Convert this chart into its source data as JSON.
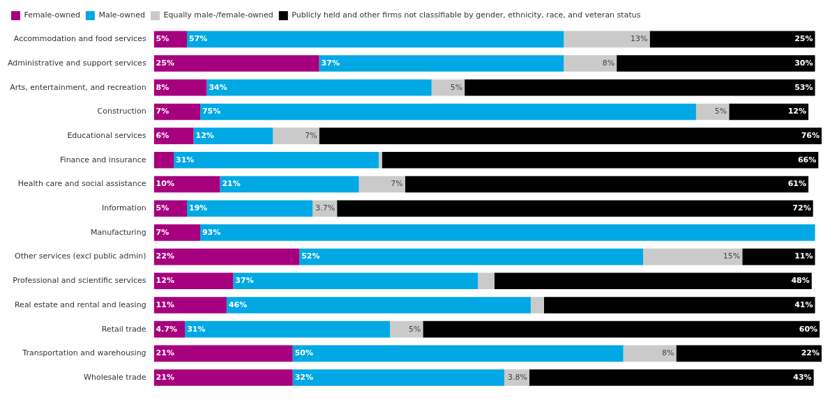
{
  "chart_data": {
    "type": "bar",
    "orientation": "horizontal",
    "stacked": true,
    "legend": "top left",
    "categories": [
      "Accommodation and food services",
      "Administrative and support services",
      "Arts, entertainment, and recreation",
      "Construction",
      "Educational services",
      "Finance and insurance",
      "Health care and social assistance",
      "Information",
      "Manufacturing",
      "Other services (excl public admin)",
      "Professional and scientific services",
      "Real estate and rental and leasing",
      "Retail trade",
      "Transportation and warehousing",
      "Wholesale trade"
    ],
    "series": [
      {
        "name": "Female-owned",
        "color": "#a6007e",
        "values": [
          5,
          25,
          8,
          7,
          6,
          3,
          10,
          5,
          7,
          22,
          12,
          11,
          4.7,
          21,
          21
        ],
        "value_labels": [
          "5%",
          "25%",
          "8%",
          "7%",
          "6%",
          null,
          "10%",
          "5%",
          "7%",
          "22%",
          "12%",
          "11%",
          "4.7%",
          "21%",
          "21%"
        ]
      },
      {
        "name": "Male-owned",
        "color": "#00a8e4",
        "values": [
          57,
          37,
          34,
          75,
          12,
          31,
          21,
          19,
          93,
          52,
          37,
          46,
          31,
          50,
          32
        ],
        "value_labels": [
          "57%",
          "37%",
          "34%",
          "75%",
          "12%",
          "31%",
          "21%",
          "19%",
          "93%",
          "52%",
          "37%",
          "46%",
          "31%",
          "50%",
          "32%"
        ]
      },
      {
        "name": "Equally male-/female-owned",
        "color": "#cacaca",
        "values": [
          13,
          8,
          5,
          5,
          7,
          0.5,
          7,
          3.7,
          0,
          15,
          2.5,
          2,
          5,
          8,
          3.8
        ],
        "value_labels": [
          "13%",
          "8%",
          "5%",
          "5%",
          "7%",
          null,
          "7%",
          "3.7%",
          null,
          "15%",
          null,
          null,
          "5%",
          "8%",
          "3.8%"
        ]
      },
      {
        "name": "Publicly held and other firms not classifiable by gender, ethnicity, race, and veteran status",
        "color": "#000000",
        "values": [
          25,
          30,
          53,
          12,
          76,
          66,
          61,
          72,
          0,
          11,
          48,
          41,
          60,
          22,
          43
        ],
        "value_labels": [
          "25%",
          "30%",
          "53%",
          "12%",
          "76%",
          "66%",
          "61%",
          "72%",
          null,
          "11%",
          "48%",
          "41%",
          "60%",
          "22%",
          "43%"
        ]
      }
    ]
  }
}
